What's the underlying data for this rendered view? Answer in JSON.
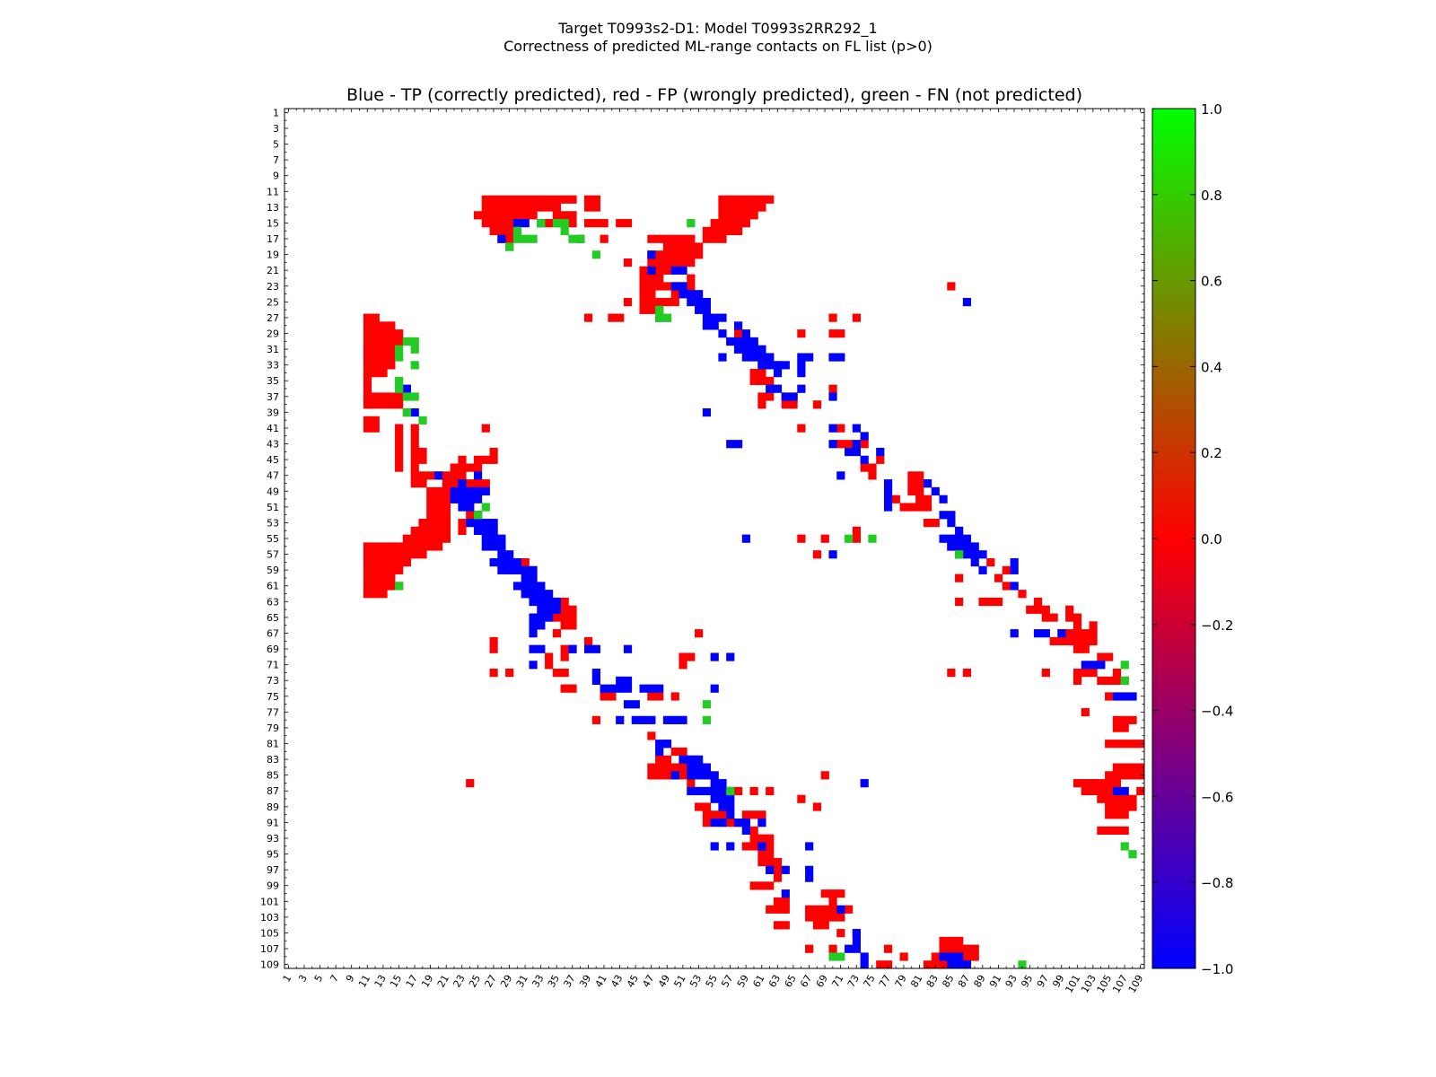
{
  "figure": {
    "title_line1": "Target T0993s2-D1: Model T0993s2RR292_1",
    "title_line2": "Correctness of predicted ML-range contacts on FL list (p>0)"
  },
  "chart_data": {
    "type": "heatmap",
    "title": "Blue - TP (correctly predicted), red - FP (wrongly predicted), green - FN (not predicted)",
    "xlabel": "",
    "ylabel": "",
    "n_residues": 109,
    "xlim": [
      1,
      109
    ],
    "ylim": [
      1,
      109
    ],
    "y_axis_inverted": true,
    "x_tick_labels": [
      "1",
      "3",
      "5",
      "7",
      "9",
      "11",
      "13",
      "15",
      "17",
      "19",
      "21",
      "23",
      "25",
      "27",
      "29",
      "31",
      "33",
      "35",
      "37",
      "39",
      "41",
      "43",
      "45",
      "47",
      "49",
      "51",
      "53",
      "55",
      "57",
      "59",
      "61",
      "63",
      "65",
      "67",
      "69",
      "71",
      "73",
      "75",
      "77",
      "79",
      "81",
      "83",
      "85",
      "87",
      "89",
      "91",
      "93",
      "95",
      "97",
      "99",
      "101",
      "103",
      "105",
      "107",
      "109"
    ],
    "y_tick_labels": [
      "1",
      "3",
      "5",
      "7",
      "9",
      "11",
      "13",
      "15",
      "17",
      "19",
      "21",
      "23",
      "25",
      "27",
      "29",
      "31",
      "33",
      "35",
      "37",
      "39",
      "41",
      "43",
      "45",
      "47",
      "49",
      "51",
      "53",
      "55",
      "57",
      "59",
      "61",
      "63",
      "65",
      "67",
      "69",
      "71",
      "73",
      "75",
      "77",
      "79",
      "81",
      "83",
      "85",
      "87",
      "89",
      "91",
      "93",
      "95",
      "97",
      "99",
      "101",
      "103",
      "105",
      "107",
      "109"
    ],
    "grid": false,
    "legend": "none",
    "colorbar": {
      "range": [
        -1.0,
        1.0
      ],
      "ticks": [
        "1.0",
        "0.8",
        "0.6",
        "0.4",
        "0.2",
        "0.0",
        "−0.2",
        "−0.4",
        "−0.6",
        "−0.8",
        "−1.0"
      ],
      "colors": {
        "top": "#00ff00",
        "middle": "#ff0000",
        "bottom": "#0000ff"
      }
    },
    "classes": {
      "TP": {
        "value": -1,
        "color": "#0000ff"
      },
      "FP": {
        "value": 0,
        "color": "#ff0000"
      },
      "FN": {
        "value": 1,
        "color": "#22cc22"
      }
    },
    "cells": {
      "TP": "15:30-31,33;17:28,38;19:47;21:47,50-51;23:50-51;24:51-53;25:52-54,87;26:53-54;27:48-49,54-56;28:54-55,58;29:56,59;30:57-60;31:58-61;32:56,59-62,66-67,70-71;33:61-64,66;34:63,66;36:16,62-63,66;37:64-65,70;39:17,54;41:70,73;42:74;43:57-58,70,73;44:72-73,76;45:74;47:20,25,71;48:23,77,82;49:22-26,77,83;50:22-25,77,84;51:23-24,77;52:25,84-85;53:24-27,85;54:25-27,86;55:26-28,59,84-87;56:26-28,85-88;57:28-29,70,86-89;58:27-30,88,93;59:28-32,89,93;60:31-32;61:30-33,93;62:31-34;63:32-35;64:33-35;65:32-34;66:32-33;67:32,93,96-97,99;69:32-33,37,39-40,44;70:55,57;71:32,102-104;72:40;73:40,43-44;74:41-44,46-48,55;75:106-108;76:44-45;78:43,45-47,49-51;81:48-49;82:48;83:51-53;84:52-54;85:50,52-55;86:55-56,74;87:52-57,106-107;88:55-57;89:56-57;90:57;91:55-56,58-59,61;92:59;94:55,57,61,67;97:62,64,67;98:67;100:64;102:71;105:73;106:73;107:72-73;108:74,84-86;109:74,85-87",
      "FP": "12:26-37,39-40,56-62;13:26-35,39-40,56-61;14:25-32,35-37,56-60;15:26-29,34-37,39-41,43-44,55-59;16:27-29,54-58;17:28-29,41,47-52,54-56;18:29,49-53;19:47-53;20:44,47-52;21:46-49;22:46-48,52;23:46-52,85;24:46-47,50-52;25:46-50,44;26:46-48;27:11-12,39,42-43,70,73;28:11-14;29:11-15,58,66,70-71;30:11-16,57-60;31:11-14,58-60;32:11-14,62;33:11-14,61;34:11-13,60-61;35:11,60-62;36:11,70;37:11-15,61-62,64-65;38:11-15,61,64-65,68;39:16;40:11-12;41:11-12,15,17,26,66,71;42:15,17;43:15,17,71-72,74;44:15,17-18,27;45:15,17-18,23,25-26,27,76;46:15,17,22-25,74-75;47:17-23,75,80-81;48:17-18,21-26,80-82;49:19-23,80-81;50:19-22,78,81-82;51:19-21,24,79-82;52:19-21,24,25;53:18-21,23,82-83;54:17-21,23,73;55:16-21,66,69,73;56:11-20,85;57:11-18,68;58:11-16,30-31,90;59:11-15,29-31,92;60:11-14,86,91;61:11-15,31,92;62:11-13,31,94;63:35-36,86,89-91,96;64:36-37,95-96,97,100;65:35-37,97-98,100-101;66:33,36-37,101,103;67:35,53,99-103;68:27,39,98-103;69:27,36-37,101-102;70:34,36,51-52,104-105;71:34,51;72:27,29,35-36,85,87,97,101-103,106;73:101,104-107;74:36-37;75:41-42,47,48,50,105;77:102;78:40,106-108;79:106-107;80:47;81:49,105-109;82:50-51;83:48-49,51-52;84:47-51,106-109;85:47-52,69,105-109;86:52,24,101-106;87:58,60,62,102-105,109;88:66,104-108;89:53-54,68,105-108;90:54-56,59-61,105-107;91:54,56-58,61;92:60,104-107;93:60-62;94:59-62;95:61-62;96:61-63;97:62-63;98:63;99:60-62;100:69-71;101:63-64,70;102:62-64,67-70,72;103:67-70,71;104:63-64,68-69;105:71,73;106:84-86;107:67,70,77,84-88;108:79,83-88;109:76-77,82-86",
      "FN": "15:33,35-36,52;16:30,36;17:30-32,37-38;18:29;19:40;26:48;27:48-49;30:16-17;31:15,17;32:15;33:17;35:15;36:15;37:16-17;39:16;40:18;51:26;52:25;55:72,75;57:86;61:15;71:107;73:107;76:54;78:54;87:57;94:107;95:108;108:70-71;109:94"
    }
  }
}
